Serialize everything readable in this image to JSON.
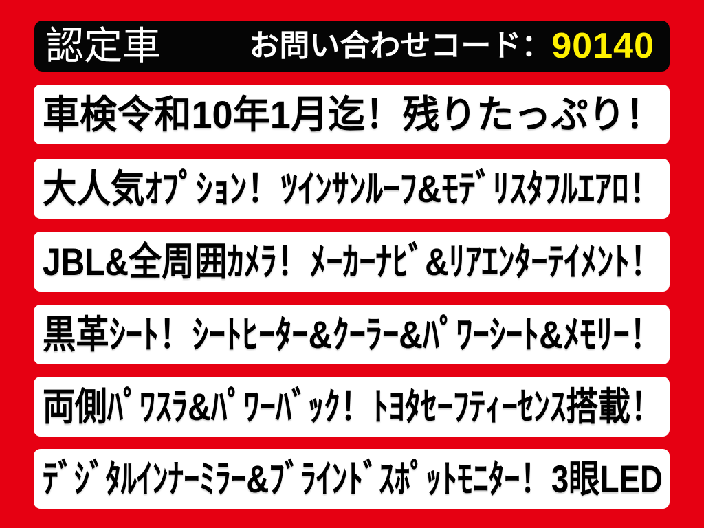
{
  "page": {
    "background_color": "#e60012"
  },
  "header": {
    "bar_color": "#050505",
    "badge_label": "認定車",
    "inquiry_label": "お問い合わせコード：",
    "inquiry_code": "90140",
    "inquiry_code_color": "#fff100"
  },
  "feature_bars": [
    {
      "text": "車検令和10年1月迄！残りたっぷり！"
    },
    {
      "text": "大人気ｵﾌﾟｼｮﾝ！ﾂｲﾝｻﾝﾙｰﾌ&ﾓﾃﾞﾘｽﾀﾌﾙｴｱﾛ！"
    },
    {
      "text": "JBL&全周囲ｶﾒﾗ！ﾒｰｶｰﾅﾋﾞ&ﾘｱｴﾝﾀｰﾃｲﾒﾝﾄ！"
    },
    {
      "text": "黒革ｼｰﾄ！ｼｰﾄﾋｰﾀｰ&ｸｰﾗｰ&ﾊﾟﾜｰｼｰﾄ&ﾒﾓﾘｰ！"
    },
    {
      "text": "両側ﾊﾟﾜｽﾗ&ﾊﾟﾜｰﾊﾞｯｸ！ﾄﾖﾀｾｰﾌﾃｨｰｾﾝｽ搭載！"
    },
    {
      "text": "ﾃﾞｼﾞﾀﾙｲﾝﾅｰﾐﾗｰ&ﾌﾞﾗｲﾝﾄﾞｽﾎﾟｯﾄﾓﾆﾀｰ！3眼LED"
    }
  ]
}
